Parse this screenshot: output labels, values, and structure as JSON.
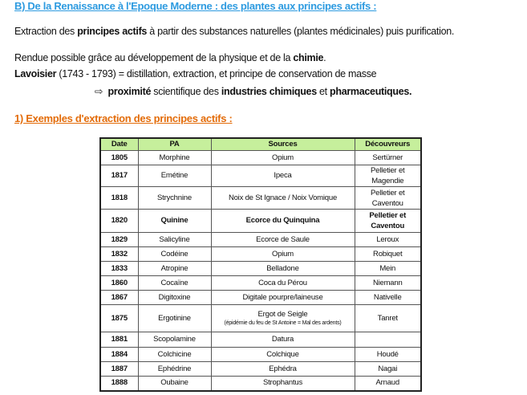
{
  "heading": "B) De la Renaissance à l'Epoque Moderne : des plantes aux principes actifs :",
  "p1": {
    "a": "Extraction des ",
    "b": "principes actifs",
    "c": " à partir des substances naturelles (plantes médicinales) puis purification."
  },
  "p2": {
    "a": "Rendue possible grâce au développement de la physique et de la ",
    "b": "chimie",
    "c": "."
  },
  "p3": {
    "a": "Lavoisier",
    "b": " (1743 - 1793) = distillation, extraction, et principe de conservation de masse"
  },
  "p4": {
    "arrow": "⇨",
    "a": "proximité",
    "b": " scientifique des ",
    "c": "industries chimiques",
    "d": " et ",
    "e": "pharmaceutiques."
  },
  "subheading": "1) Exemples d'extraction des principes actifs :",
  "table": {
    "headers": [
      "Date",
      "PA",
      "Sources",
      "Découvreurs"
    ],
    "rows": [
      [
        "1805",
        "Morphine",
        "Opium",
        "Sertürner"
      ],
      [
        "1817",
        "Emétine",
        "Ipeca",
        "Pelletier et Magendie"
      ],
      [
        "1818",
        "Strychnine",
        "Noix de St Ignace / Noix Vomique",
        "Pelletier et Caventou"
      ],
      [
        "1820",
        "Quinine",
        "Ecorce du Quinquina",
        "Pelletier et Caventou"
      ],
      [
        "1829",
        "Salicyline",
        "Ecorce de Saule",
        "Leroux"
      ],
      [
        "1832",
        "Codéine",
        "Opium",
        "Robiquet"
      ],
      [
        "1833",
        "Atropine",
        "Belladone",
        "Mein"
      ],
      [
        "1860",
        "Cocaïne",
        "Coca du Pérou",
        "Niemann"
      ],
      [
        "1867",
        "Digitoxine",
        "Digitale pourpre/laineuse",
        "Nativelle"
      ],
      [
        "1875",
        "Ergotinine",
        "Ergot de Seigle",
        "Tanret"
      ],
      [
        "1881",
        "Scopolamine",
        "Datura",
        ""
      ],
      [
        "1884",
        "Colchicine",
        "Colchique",
        "Houdé"
      ],
      [
        "1887",
        "Ephédrine",
        "Ephédra",
        "Nagai"
      ],
      [
        "1888",
        "Oubaine",
        "Strophantus",
        "Arnaud"
      ]
    ],
    "note_1875": "(épidémie du feu de St Antoine = Mal des ardents)",
    "bold_row": "1820"
  },
  "colors": {
    "heading": "#2e9be0",
    "subheading": "#e36c0a",
    "table_header": "#c6ef9c"
  }
}
